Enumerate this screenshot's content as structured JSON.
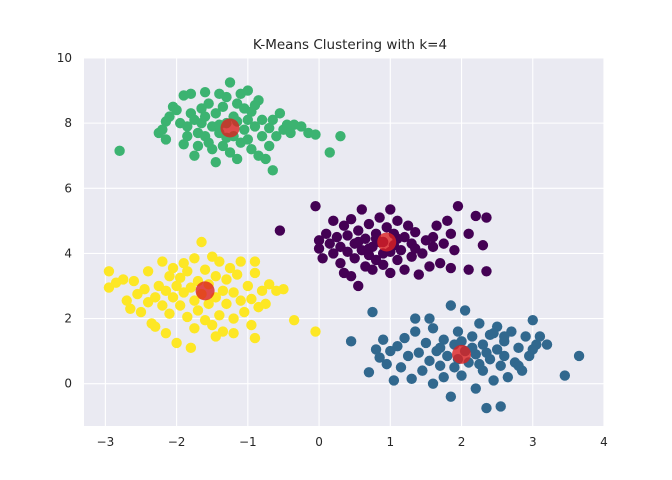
{
  "chart_data": {
    "type": "scatter",
    "title": "K-Means Clustering with k=4",
    "xlabel": "",
    "ylabel": "",
    "xlim": [
      -3.3,
      4.0
    ],
    "ylim": [
      -1.3,
      10.0
    ],
    "xticks": [
      -3,
      -2,
      -1,
      0,
      1,
      2,
      3,
      4
    ],
    "yticks": [
      0,
      2,
      4,
      6,
      8,
      10
    ],
    "grid": true,
    "legend": "none",
    "background": "#eaeaf2",
    "clusters": [
      {
        "color": "#3cb371",
        "center_approx": [
          -1.25,
          7.85
        ],
        "points": [
          [
            -2.8,
            7.15
          ],
          [
            -2.25,
            7.7
          ],
          [
            -2.2,
            7.8
          ],
          [
            -2.15,
            7.5
          ],
          [
            -2.1,
            8.2
          ],
          [
            -2.05,
            8.5
          ],
          [
            -2.0,
            8.4
          ],
          [
            -1.95,
            8.0
          ],
          [
            -1.9,
            8.85
          ],
          [
            -1.85,
            7.6
          ],
          [
            -1.85,
            7.9
          ],
          [
            -1.8,
            8.9
          ],
          [
            -1.8,
            8.3
          ],
          [
            -1.75,
            8.1
          ],
          [
            -1.75,
            7.0
          ],
          [
            -1.7,
            7.3
          ],
          [
            -1.7,
            7.7
          ],
          [
            -1.65,
            8.0
          ],
          [
            -1.65,
            8.45
          ],
          [
            -1.6,
            7.6
          ],
          [
            -1.6,
            8.2
          ],
          [
            -1.55,
            7.4
          ],
          [
            -1.55,
            8.6
          ],
          [
            -1.5,
            7.9
          ],
          [
            -1.5,
            7.2
          ],
          [
            -1.45,
            6.8
          ],
          [
            -1.45,
            8.3
          ],
          [
            -1.4,
            7.7
          ],
          [
            -1.4,
            7.95
          ],
          [
            -1.35,
            8.5
          ],
          [
            -1.35,
            7.3
          ],
          [
            -1.3,
            8.0
          ],
          [
            -1.3,
            8.8
          ],
          [
            -1.25,
            9.25
          ],
          [
            -1.25,
            7.1
          ],
          [
            -1.2,
            7.6
          ],
          [
            -1.2,
            8.2
          ],
          [
            -1.15,
            6.9
          ],
          [
            -1.15,
            8.6
          ],
          [
            -1.1,
            7.4
          ],
          [
            -1.1,
            8.9
          ],
          [
            -1.05,
            8.45
          ],
          [
            -1.05,
            7.8
          ],
          [
            -1.0,
            7.5
          ],
          [
            -1.0,
            8.1
          ],
          [
            -0.95,
            7.2
          ],
          [
            -0.95,
            8.35
          ],
          [
            -0.9,
            7.9
          ],
          [
            -0.85,
            7.0
          ],
          [
            -0.85,
            8.7
          ],
          [
            -0.8,
            7.6
          ],
          [
            -0.8,
            8.1
          ],
          [
            -0.75,
            6.9
          ],
          [
            -0.7,
            7.3
          ],
          [
            -0.7,
            7.85
          ],
          [
            -0.65,
            8.1
          ],
          [
            -0.6,
            7.6
          ],
          [
            -0.55,
            8.3
          ],
          [
            -0.5,
            7.8
          ],
          [
            -0.45,
            7.95
          ],
          [
            -0.4,
            7.7
          ],
          [
            -0.35,
            7.95
          ],
          [
            -0.25,
            7.9
          ],
          [
            -0.15,
            7.7
          ],
          [
            -0.05,
            7.65
          ],
          [
            0.15,
            7.1
          ],
          [
            0.3,
            7.6
          ],
          [
            -1.0,
            9.0
          ],
          [
            -1.6,
            8.95
          ],
          [
            -1.9,
            7.35
          ],
          [
            -1.3,
            7.55
          ],
          [
            -1.15,
            8.05
          ],
          [
            -0.65,
            6.55
          ],
          [
            -2.15,
            8.05
          ],
          [
            -1.4,
            8.9
          ],
          [
            -0.9,
            8.55
          ]
        ]
      },
      {
        "color": "#440154",
        "center_approx": [
          0.95,
          4.35
        ],
        "points": [
          [
            -0.55,
            4.7
          ],
          [
            -0.05,
            5.45
          ],
          [
            0.0,
            4.4
          ],
          [
            0.0,
            4.15
          ],
          [
            0.05,
            3.85
          ],
          [
            0.1,
            4.6
          ],
          [
            0.15,
            4.3
          ],
          [
            0.2,
            4.0
          ],
          [
            0.2,
            5.0
          ],
          [
            0.25,
            4.5
          ],
          [
            0.3,
            3.7
          ],
          [
            0.3,
            4.2
          ],
          [
            0.35,
            4.85
          ],
          [
            0.35,
            3.4
          ],
          [
            0.4,
            4.05
          ],
          [
            0.4,
            4.55
          ],
          [
            0.45,
            3.3
          ],
          [
            0.45,
            5.05
          ],
          [
            0.5,
            3.85
          ],
          [
            0.5,
            4.3
          ],
          [
            0.55,
            4.7
          ],
          [
            0.55,
            3.0
          ],
          [
            0.6,
            4.1
          ],
          [
            0.6,
            5.35
          ],
          [
            0.65,
            3.6
          ],
          [
            0.65,
            4.45
          ],
          [
            0.7,
            3.95
          ],
          [
            0.7,
            4.9
          ],
          [
            0.75,
            4.2
          ],
          [
            0.75,
            3.5
          ],
          [
            0.8,
            4.6
          ],
          [
            0.8,
            3.8
          ],
          [
            0.85,
            5.1
          ],
          [
            0.85,
            4.35
          ],
          [
            0.9,
            3.65
          ],
          [
            0.9,
            4.0
          ],
          [
            0.95,
            4.8
          ],
          [
            1.0,
            5.35
          ],
          [
            1.0,
            3.4
          ],
          [
            1.05,
            4.25
          ],
          [
            1.05,
            4.6
          ],
          [
            1.1,
            3.8
          ],
          [
            1.1,
            5.0
          ],
          [
            1.15,
            4.1
          ],
          [
            1.2,
            3.5
          ],
          [
            1.2,
            4.5
          ],
          [
            1.25,
            4.85
          ],
          [
            1.3,
            3.9
          ],
          [
            1.3,
            4.3
          ],
          [
            1.35,
            4.65
          ],
          [
            1.4,
            3.35
          ],
          [
            1.45,
            4.0
          ],
          [
            1.5,
            4.4
          ],
          [
            1.55,
            3.6
          ],
          [
            1.6,
            4.2
          ],
          [
            1.65,
            4.85
          ],
          [
            1.7,
            3.7
          ],
          [
            1.75,
            4.3
          ],
          [
            1.8,
            5.0
          ],
          [
            1.85,
            4.6
          ],
          [
            1.9,
            4.1
          ],
          [
            1.95,
            5.45
          ],
          [
            2.1,
            4.6
          ],
          [
            2.2,
            5.15
          ],
          [
            2.35,
            5.1
          ],
          [
            2.3,
            4.25
          ],
          [
            2.35,
            3.45
          ],
          [
            2.1,
            3.5
          ],
          [
            1.85,
            3.55
          ],
          [
            0.9,
            4.35
          ],
          [
            1.1,
            4.45
          ],
          [
            0.7,
            4.15
          ],
          [
            0.55,
            4.35
          ],
          [
            1.35,
            4.15
          ],
          [
            1.6,
            4.5
          ],
          [
            1.0,
            4.05
          ],
          [
            0.8,
            4.45
          ]
        ]
      },
      {
        "color": "#fde725",
        "center_approx": [
          -1.6,
          2.85
        ],
        "points": [
          [
            -2.95,
            3.45
          ],
          [
            -2.95,
            2.95
          ],
          [
            -2.85,
            3.1
          ],
          [
            -2.75,
            3.2
          ],
          [
            -2.7,
            2.55
          ],
          [
            -2.65,
            2.3
          ],
          [
            -2.6,
            3.15
          ],
          [
            -2.55,
            2.75
          ],
          [
            -2.5,
            2.2
          ],
          [
            -2.45,
            2.9
          ],
          [
            -2.4,
            2.5
          ],
          [
            -2.4,
            3.45
          ],
          [
            -2.35,
            1.85
          ],
          [
            -2.3,
            2.65
          ],
          [
            -2.3,
            1.75
          ],
          [
            -2.25,
            3.0
          ],
          [
            -2.2,
            2.4
          ],
          [
            -2.2,
            3.75
          ],
          [
            -2.15,
            2.85
          ],
          [
            -2.1,
            2.15
          ],
          [
            -2.1,
            3.3
          ],
          [
            -2.05,
            2.65
          ],
          [
            -2.05,
            3.55
          ],
          [
            -2.0,
            3.0
          ],
          [
            -2.0,
            1.25
          ],
          [
            -1.95,
            2.4
          ],
          [
            -1.95,
            3.25
          ],
          [
            -1.9,
            2.8
          ],
          [
            -1.9,
            3.7
          ],
          [
            -1.85,
            2.05
          ],
          [
            -1.85,
            3.45
          ],
          [
            -1.8,
            2.95
          ],
          [
            -1.8,
            1.1
          ],
          [
            -1.75,
            2.55
          ],
          [
            -1.75,
            3.85
          ],
          [
            -1.7,
            2.25
          ],
          [
            -1.7,
            3.15
          ],
          [
            -1.65,
            2.75
          ],
          [
            -1.65,
            4.35
          ],
          [
            -1.6,
            3.5
          ],
          [
            -1.6,
            1.95
          ],
          [
            -1.55,
            3.05
          ],
          [
            -1.55,
            2.45
          ],
          [
            -1.5,
            3.9
          ],
          [
            -1.5,
            1.8
          ],
          [
            -1.45,
            2.65
          ],
          [
            -1.45,
            3.3
          ],
          [
            -1.4,
            2.1
          ],
          [
            -1.4,
            3.75
          ],
          [
            -1.35,
            2.85
          ],
          [
            -1.35,
            1.6
          ],
          [
            -1.3,
            3.2
          ],
          [
            -1.3,
            2.45
          ],
          [
            -1.25,
            3.55
          ],
          [
            -1.2,
            2.0
          ],
          [
            -1.2,
            2.8
          ],
          [
            -1.15,
            3.35
          ],
          [
            -1.1,
            2.55
          ],
          [
            -1.1,
            3.75
          ],
          [
            -1.05,
            2.2
          ],
          [
            -1.0,
            3.0
          ],
          [
            -0.95,
            2.6
          ],
          [
            -0.95,
            1.8
          ],
          [
            -0.9,
            3.4
          ],
          [
            -0.85,
            2.35
          ],
          [
            -0.8,
            2.85
          ],
          [
            -0.75,
            2.45
          ],
          [
            -0.7,
            3.05
          ],
          [
            -0.6,
            2.85
          ],
          [
            -0.5,
            2.9
          ],
          [
            -0.35,
            1.95
          ],
          [
            -0.05,
            1.6
          ],
          [
            -0.9,
            1.4
          ],
          [
            -1.2,
            1.55
          ],
          [
            -1.45,
            1.45
          ],
          [
            -1.75,
            1.7
          ],
          [
            -2.15,
            1.55
          ],
          [
            -0.9,
            3.75
          ]
        ]
      },
      {
        "color": "#31688e",
        "center_approx": [
          2.0,
          0.9
        ],
        "points": [
          [
            0.45,
            1.3
          ],
          [
            0.7,
            0.35
          ],
          [
            0.75,
            2.2
          ],
          [
            0.8,
            1.05
          ],
          [
            0.85,
            0.8
          ],
          [
            0.9,
            1.35
          ],
          [
            0.95,
            0.6
          ],
          [
            1.0,
            1.0
          ],
          [
            1.05,
            0.1
          ],
          [
            1.1,
            1.15
          ],
          [
            1.15,
            0.5
          ],
          [
            1.2,
            1.4
          ],
          [
            1.25,
            0.85
          ],
          [
            1.3,
            0.15
          ],
          [
            1.35,
            1.6
          ],
          [
            1.4,
            0.95
          ],
          [
            1.45,
            0.4
          ],
          [
            1.5,
            1.25
          ],
          [
            1.55,
            0.7
          ],
          [
            1.6,
            0.0
          ],
          [
            1.6,
            1.7
          ],
          [
            1.65,
            1.0
          ],
          [
            1.7,
            0.55
          ],
          [
            1.75,
            1.35
          ],
          [
            1.75,
            0.2
          ],
          [
            1.8,
            0.85
          ],
          [
            1.85,
            2.4
          ],
          [
            1.85,
            -0.4
          ],
          [
            1.9,
            1.2
          ],
          [
            1.9,
            0.5
          ],
          [
            1.95,
            1.6
          ],
          [
            2.0,
            0.25
          ],
          [
            2.05,
            1.0
          ],
          [
            2.05,
            2.25
          ],
          [
            2.1,
            0.65
          ],
          [
            2.15,
            1.45
          ],
          [
            2.2,
            -0.15
          ],
          [
            2.2,
            0.9
          ],
          [
            2.25,
            1.85
          ],
          [
            2.3,
            0.4
          ],
          [
            2.3,
            1.2
          ],
          [
            2.35,
            -0.75
          ],
          [
            2.4,
            0.75
          ],
          [
            2.4,
            1.5
          ],
          [
            2.45,
            0.1
          ],
          [
            2.5,
            1.05
          ],
          [
            2.5,
            1.75
          ],
          [
            2.55,
            0.55
          ],
          [
            2.55,
            -0.7
          ],
          [
            2.6,
            1.3
          ],
          [
            2.6,
            0.85
          ],
          [
            2.65,
            0.2
          ],
          [
            2.7,
            1.6
          ],
          [
            2.75,
            0.65
          ],
          [
            2.8,
            1.1
          ],
          [
            2.85,
            0.4
          ],
          [
            2.9,
            1.45
          ],
          [
            2.95,
            0.85
          ],
          [
            3.0,
            1.95
          ],
          [
            3.05,
            1.2
          ],
          [
            3.1,
            1.45
          ],
          [
            3.2,
            1.2
          ],
          [
            3.45,
            0.25
          ],
          [
            3.65,
            0.85
          ],
          [
            1.55,
            2.0
          ],
          [
            1.35,
            2.0
          ],
          [
            2.45,
            1.55
          ],
          [
            2.15,
            1.1
          ],
          [
            1.95,
            0.75
          ],
          [
            2.35,
            0.95
          ],
          [
            2.6,
            1.45
          ],
          [
            1.7,
            1.1
          ],
          [
            2.0,
            1.3
          ],
          [
            2.25,
            0.6
          ],
          [
            2.8,
            0.55
          ],
          [
            3.0,
            1.05
          ]
        ]
      }
    ],
    "centroids": {
      "color": "#dc2020",
      "points": [
        [
          -1.25,
          7.85
        ],
        [
          0.95,
          4.35
        ],
        [
          -1.6,
          2.85
        ],
        [
          2.0,
          0.9
        ]
      ]
    }
  }
}
